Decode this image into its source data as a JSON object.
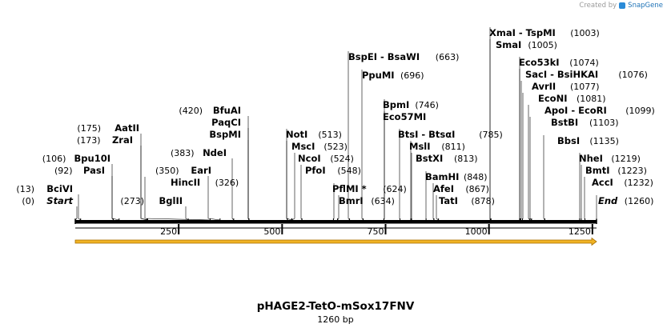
{
  "credit": {
    "text": "Created by",
    "brand": "SnapGene",
    "logo_icon": "snapgene-logo-icon"
  },
  "map": {
    "title": "pHAGE2-TetO-mSox17FNV",
    "length_text": "1260 bp",
    "sequence_length": 1260,
    "ticks": [
      "250",
      "500",
      "750",
      "1000",
      "1250"
    ],
    "colors": {
      "feature_arrow": "#f0b323",
      "feature_outline": "#a66d00",
      "backbone": "#000000"
    }
  },
  "enzymes": [
    {
      "name": "BciVI",
      "pos": "(13)",
      "bp": 13,
      "side": "L"
    },
    {
      "name": "Start",
      "pos": "(0)",
      "bp": 0,
      "side": "L",
      "italic": true
    },
    {
      "name": "Bpu10I",
      "pos": "(106)",
      "bp": 106,
      "side": "L"
    },
    {
      "name": "PasI",
      "pos": "(92)",
      "bp": 92,
      "side": "L"
    },
    {
      "name": "AatII",
      "pos": "(175)",
      "bp": 175,
      "side": "L"
    },
    {
      "name": "ZraI",
      "pos": "(173)",
      "bp": 173,
      "side": "L"
    },
    {
      "name": "HincII",
      "pos": "(326)",
      "bp": 326,
      "side": "R"
    },
    {
      "name": "BglII",
      "pos": "(273)",
      "bp": 273,
      "side": "L"
    },
    {
      "name": "EarI",
      "pos": "(350)",
      "bp": 350,
      "side": "L"
    },
    {
      "name": "NdeI",
      "pos": "(383)",
      "bp": 383,
      "side": "L"
    },
    {
      "name": "BfuAI",
      "pos": "(420)",
      "bp": 420,
      "side": "L"
    },
    {
      "name": "PaqCI",
      "pos": "",
      "bp": 420,
      "side": "L"
    },
    {
      "name": "BspMI",
      "pos": "",
      "bp": 420,
      "side": "L"
    },
    {
      "name": "NotI",
      "pos": "(513)",
      "bp": 513,
      "side": "R"
    },
    {
      "name": "MscI",
      "pos": "(523)",
      "bp": 523,
      "side": "R"
    },
    {
      "name": "NcoI",
      "pos": "(524)",
      "bp": 524,
      "side": "R"
    },
    {
      "name": "PfoI",
      "pos": "(548)",
      "bp": 548,
      "side": "R"
    },
    {
      "name": "PflMI *",
      "pos": "(624)",
      "bp": 624,
      "side": "R"
    },
    {
      "name": "BmrI",
      "pos": "(634)",
      "bp": 634,
      "side": "R"
    },
    {
      "name": "BspEI - BsaWI",
      "pos": "(663)",
      "bp": 663,
      "side": "R"
    },
    {
      "name": "PpuMI",
      "pos": "(696)",
      "bp": 696,
      "side": "R"
    },
    {
      "name": "BpmI",
      "pos": "(746)",
      "bp": 746,
      "side": "R"
    },
    {
      "name": "Eco57MI",
      "pos": "",
      "bp": 746,
      "side": "R"
    },
    {
      "name": "BtsI - BtsαI",
      "pos": "(785)",
      "bp": 785,
      "side": "R"
    },
    {
      "name": "MslI",
      "pos": "(811)",
      "bp": 811,
      "side": "R"
    },
    {
      "name": "BstXI",
      "pos": "(813)",
      "bp": 813,
      "side": "R"
    },
    {
      "name": "BamHI",
      "pos": "(848)",
      "bp": 848,
      "side": "R"
    },
    {
      "name": "AfeI",
      "pos": "(867)",
      "bp": 867,
      "side": "R"
    },
    {
      "name": "TatI",
      "pos": "(878)",
      "bp": 878,
      "side": "R"
    },
    {
      "name": "XmaI - TspMI",
      "pos": "(1003)",
      "bp": 1003,
      "side": "R"
    },
    {
      "name": "SmaI",
      "pos": "(1005)",
      "bp": 1005,
      "side": "R"
    },
    {
      "name": "Eco53kI",
      "pos": "(1074)",
      "bp": 1074,
      "side": "R"
    },
    {
      "name": "SacI - BsiHKAI",
      "pos": "(1076)",
      "bp": 1076,
      "side": "R"
    },
    {
      "name": "AvrII",
      "pos": "(1077)",
      "bp": 1077,
      "side": "R"
    },
    {
      "name": "EcoNI",
      "pos": "(1081)",
      "bp": 1081,
      "side": "R"
    },
    {
      "name": "ApoI - EcoRI",
      "pos": "(1099)",
      "bp": 1099,
      "side": "R"
    },
    {
      "name": "BstBI",
      "pos": "(1103)",
      "bp": 1103,
      "side": "R"
    },
    {
      "name": "BbsI",
      "pos": "(1135)",
      "bp": 1135,
      "side": "R"
    },
    {
      "name": "NheI",
      "pos": "(1219)",
      "bp": 1219,
      "side": "R"
    },
    {
      "name": "BmtI",
      "pos": "(1223)",
      "bp": 1223,
      "side": "R"
    },
    {
      "name": "AccI",
      "pos": "(1232)",
      "bp": 1232,
      "side": "R"
    },
    {
      "name": "End",
      "pos": "(1260)",
      "bp": 1260,
      "side": "R",
      "italic": true
    }
  ]
}
